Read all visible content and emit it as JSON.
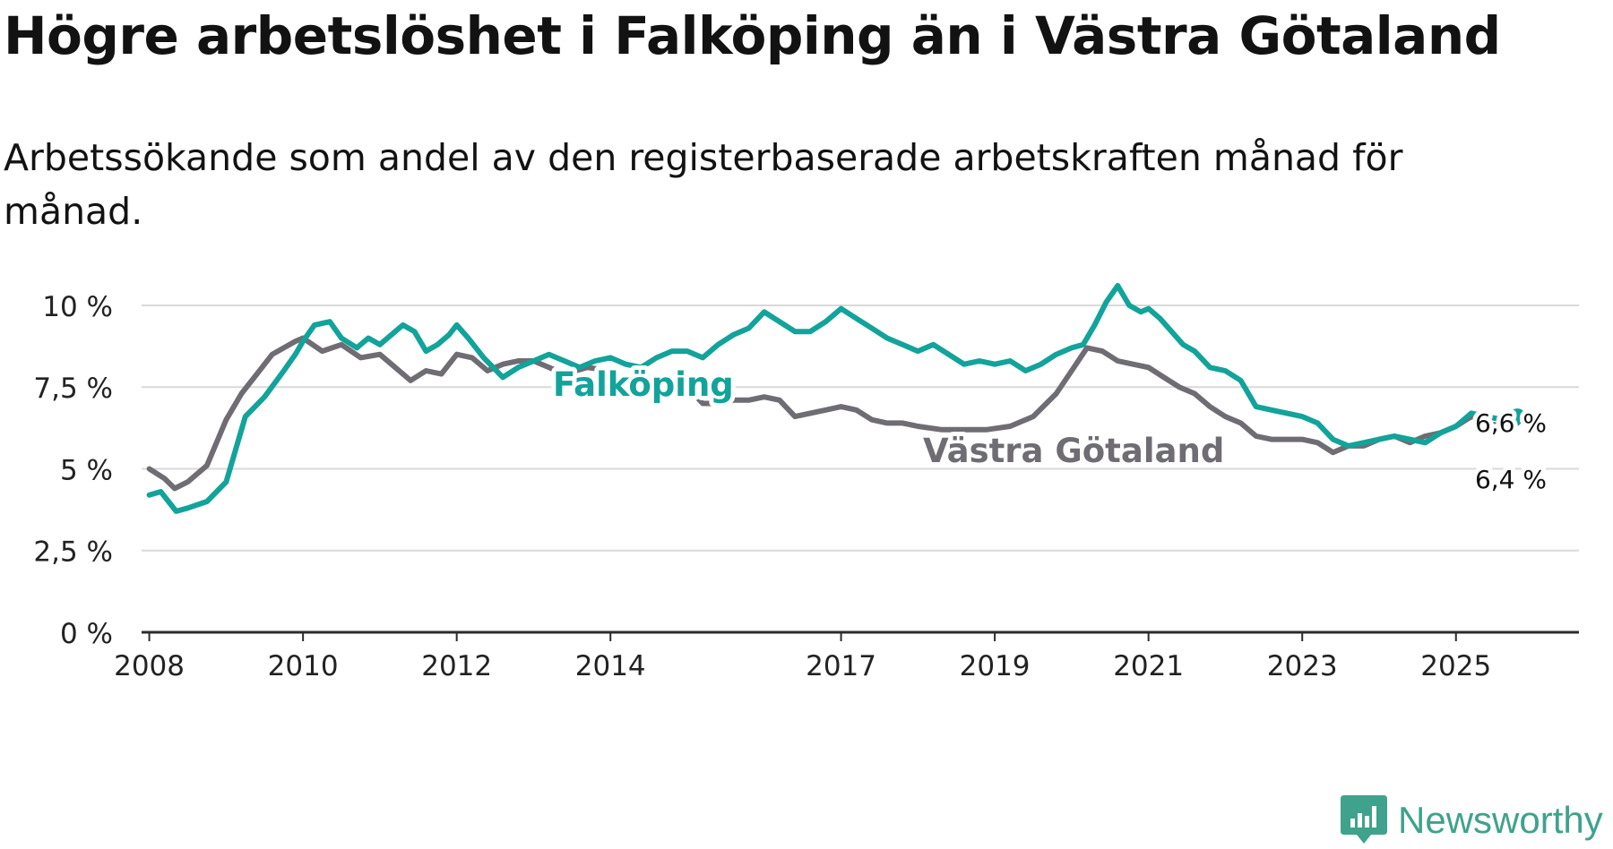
{
  "title": "Högre arbetslöshet i Falköping än i Västra Götaland",
  "subtitle": "Arbetssökande som andel av den registerbaserade arbetskraften månad för månad.",
  "logo": {
    "name": "Newsworthy",
    "icon": "newsworthy-logo-icon"
  },
  "colors": {
    "falkoping": "#12a39a",
    "vastra_gotaland": "#6f6d73",
    "grid": "#d9d9d9",
    "axis": "#2b2b2b"
  },
  "chart_data": {
    "type": "line",
    "title": "Högre arbetslöshet i Falköping än i Västra Götaland",
    "subtitle": "Arbetssökande som andel av den registerbaserade arbetskraften månad för månad.",
    "xlabel": "",
    "ylabel": "",
    "xlim": [
      2007.9,
      2026.6
    ],
    "ylim": [
      0,
      10.3
    ],
    "yticks": [
      0,
      2.5,
      5,
      7.5,
      10
    ],
    "ytick_labels": [
      "0 %",
      "2,5 %",
      "5 %",
      "7,5 %",
      "10 %"
    ],
    "xticks": [
      2008,
      2010,
      2012,
      2014,
      2017,
      2019,
      2021,
      2023,
      2025
    ],
    "xtick_labels": [
      "2008",
      "2010",
      "2012",
      "2014",
      "2017",
      "2019",
      "2021",
      "2023",
      "2025"
    ],
    "grid": true,
    "legend": "inline labels",
    "series": [
      {
        "name": "Västra Götaland",
        "label": "Västra Götaland",
        "end_label": "6,4 %",
        "x": [
          2008.0,
          2008.2,
          2008.33,
          2008.5,
          2008.75,
          2009.0,
          2009.2,
          2009.4,
          2009.6,
          2009.9,
          2010.0,
          2010.25,
          2010.5,
          2010.75,
          2011.0,
          2011.2,
          2011.4,
          2011.6,
          2011.8,
          2012.0,
          2012.2,
          2012.4,
          2012.6,
          2012.8,
          2013.0,
          2013.2,
          2013.4,
          2013.7,
          2014.0,
          2014.2,
          2014.4,
          2014.6,
          2014.85,
          2015.0,
          2015.2,
          2015.4,
          2015.6,
          2015.8,
          2016.0,
          2016.2,
          2016.4,
          2016.6,
          2016.8,
          2017.0,
          2017.2,
          2017.4,
          2017.6,
          2017.8,
          2018.0,
          2018.3,
          2018.6,
          2018.9,
          2019.2,
          2019.5,
          2019.8,
          2020.0,
          2020.2,
          2020.4,
          2020.6,
          2020.8,
          2021.0,
          2021.2,
          2021.4,
          2021.6,
          2021.8,
          2022.0,
          2022.2,
          2022.4,
          2022.6,
          2022.8,
          2023.0,
          2023.2,
          2023.4,
          2023.6,
          2023.8,
          2024.0,
          2024.2,
          2024.4,
          2024.6,
          2024.8,
          2025.0,
          2025.2,
          2025.4,
          2025.6,
          2025.8
        ],
        "values": [
          5.0,
          4.7,
          4.4,
          4.6,
          5.1,
          6.5,
          7.3,
          7.9,
          8.5,
          8.9,
          9.0,
          8.6,
          8.8,
          8.4,
          8.5,
          8.1,
          7.7,
          8.0,
          7.9,
          8.5,
          8.4,
          8.0,
          8.2,
          8.3,
          8.3,
          8.1,
          7.9,
          8.1,
          8.0,
          7.3,
          7.3,
          7.4,
          7.6,
          7.5,
          7.0,
          7.0,
          7.1,
          7.1,
          7.2,
          7.1,
          6.6,
          6.7,
          6.8,
          6.9,
          6.8,
          6.5,
          6.4,
          6.4,
          6.3,
          6.2,
          6.2,
          6.2,
          6.3,
          6.6,
          7.3,
          8.0,
          8.7,
          8.6,
          8.3,
          8.2,
          8.1,
          7.8,
          7.5,
          7.3,
          6.9,
          6.6,
          6.4,
          6.0,
          5.9,
          5.9,
          5.9,
          5.8,
          5.5,
          5.7,
          5.7,
          5.9,
          6.0,
          5.8,
          6.0,
          6.1,
          6.3,
          6.6,
          6.4,
          6.3,
          6.4
        ]
      },
      {
        "name": "Falköping",
        "label": "Falköping",
        "end_label": "6,6 %",
        "x": [
          2008.0,
          2008.15,
          2008.25,
          2008.35,
          2008.5,
          2008.75,
          2009.0,
          2009.25,
          2009.5,
          2009.75,
          2009.9,
          2010.0,
          2010.15,
          2010.35,
          2010.5,
          2010.7,
          2010.85,
          2011.0,
          2011.15,
          2011.3,
          2011.45,
          2011.6,
          2011.75,
          2011.9,
          2012.0,
          2012.15,
          2012.35,
          2012.6,
          2012.8,
          2013.0,
          2013.2,
          2013.4,
          2013.6,
          2013.8,
          2014.0,
          2014.2,
          2014.4,
          2014.6,
          2014.8,
          2015.0,
          2015.2,
          2015.4,
          2015.6,
          2015.8,
          2016.0,
          2016.2,
          2016.4,
          2016.6,
          2016.8,
          2017.0,
          2017.2,
          2017.4,
          2017.6,
          2017.8,
          2018.0,
          2018.2,
          2018.4,
          2018.6,
          2018.8,
          2019.0,
          2019.2,
          2019.4,
          2019.6,
          2019.8,
          2020.0,
          2020.15,
          2020.3,
          2020.45,
          2020.6,
          2020.75,
          2020.9,
          2021.0,
          2021.15,
          2021.3,
          2021.45,
          2021.6,
          2021.8,
          2022.0,
          2022.2,
          2022.4,
          2022.6,
          2022.8,
          2023.0,
          2023.2,
          2023.4,
          2023.6,
          2023.8,
          2024.0,
          2024.2,
          2024.4,
          2024.6,
          2024.8,
          2025.0,
          2025.2,
          2025.4,
          2025.6,
          2025.8
        ],
        "values": [
          4.2,
          4.3,
          4.0,
          3.7,
          3.8,
          4.0,
          4.6,
          6.6,
          7.2,
          8.0,
          8.5,
          8.9,
          9.4,
          9.5,
          9.0,
          8.7,
          9.0,
          8.8,
          9.1,
          9.4,
          9.2,
          8.6,
          8.8,
          9.1,
          9.4,
          9.0,
          8.4,
          7.8,
          8.1,
          8.3,
          8.5,
          8.3,
          8.1,
          8.3,
          8.4,
          8.2,
          8.1,
          8.4,
          8.6,
          8.6,
          8.4,
          8.8,
          9.1,
          9.3,
          9.8,
          9.5,
          9.2,
          9.2,
          9.5,
          9.9,
          9.6,
          9.3,
          9.0,
          8.8,
          8.6,
          8.8,
          8.5,
          8.2,
          8.3,
          8.2,
          8.3,
          8.0,
          8.2,
          8.5,
          8.7,
          8.8,
          9.4,
          10.1,
          10.6,
          10.0,
          9.8,
          9.9,
          9.6,
          9.2,
          8.8,
          8.6,
          8.1,
          8.0,
          7.7,
          6.9,
          6.8,
          6.7,
          6.6,
          6.4,
          5.9,
          5.7,
          5.8,
          5.9,
          6.0,
          5.9,
          5.8,
          6.1,
          6.3,
          6.7,
          6.6,
          6.5,
          6.6
        ]
      }
    ]
  }
}
